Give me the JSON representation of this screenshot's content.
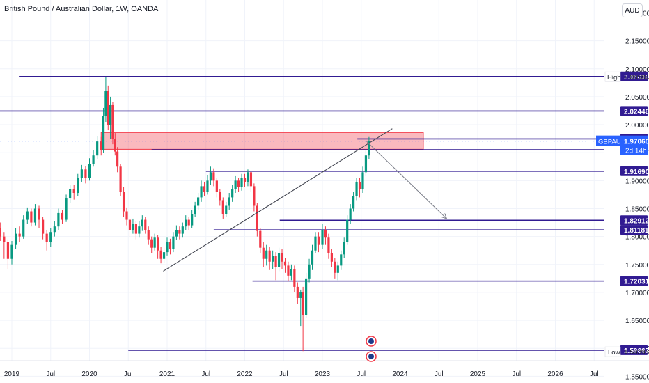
{
  "header": {
    "title": "British Pound / Australian Dollar, 1W, OANDA",
    "currency": "AUD"
  },
  "chart_data": {
    "type": "candlestick",
    "symbol": "GBPAUD",
    "ylim": [
      1.538,
      2.223
    ],
    "y_ticks": [
      "2.20000",
      "2.15000",
      "2.10000",
      "2.05000",
      "2.00000",
      "1.95000",
      "1.90000",
      "1.85000",
      "1.80000",
      "1.75000",
      "1.70000",
      "1.65000",
      "1.60000",
      "1.55000"
    ],
    "x_ticks": [
      {
        "label": "2019",
        "t": 2019.0
      },
      {
        "label": "Jul",
        "t": 2019.5
      },
      {
        "label": "2020",
        "t": 2020.0
      },
      {
        "label": "Jul",
        "t": 2020.5
      },
      {
        "label": "2021",
        "t": 2021.0
      },
      {
        "label": "Jul",
        "t": 2021.5
      },
      {
        "label": "2022",
        "t": 2022.0
      },
      {
        "label": "Jul",
        "t": 2022.5
      },
      {
        "label": "2023",
        "t": 2023.0
      },
      {
        "label": "Jul",
        "t": 2023.5
      },
      {
        "label": "2024",
        "t": 2024.0
      },
      {
        "label": "Jul",
        "t": 2024.5
      },
      {
        "label": "2025",
        "t": 2025.0
      },
      {
        "label": "Jul",
        "t": 2025.5
      },
      {
        "label": "2026",
        "t": 2026.0
      },
      {
        "label": "Jul",
        "t": 2026.5
      }
    ],
    "levels": [
      {
        "price": 2.0863,
        "label": "2.08630",
        "t_start": 2019.1
      },
      {
        "price": 2.02446,
        "label": "2.02446",
        "t_start": 2018.8
      },
      {
        "price": 1.97459,
        "label": "1.97459",
        "t_start": 2023.45
      },
      {
        "price": 1.95523,
        "label": "1.95523",
        "t_start": 2020.8
      },
      {
        "price": 1.9169,
        "label": "1.91690",
        "t_start": 2021.5
      },
      {
        "price": 1.82912,
        "label": "1.82912",
        "t_start": 2022.45
      },
      {
        "price": 1.81181,
        "label": "1.81181",
        "t_start": 2021.6
      },
      {
        "price": 1.72031,
        "label": "1.72031",
        "t_start": 2022.1
      },
      {
        "price": 1.59667,
        "label": "1.59667",
        "t_start": 2020.5
      }
    ],
    "current": {
      "label": "GBPAUD",
      "price": 1.9706,
      "price_label": "1.97060",
      "countdown": "2d 14h"
    },
    "high": {
      "label": "High",
      "price": 2.08584,
      "price_label": "2.08584"
    },
    "low": {
      "label": "Low",
      "price": 1.59396,
      "price_label": "1.59396"
    },
    "zone": {
      "t_start": 2020.15,
      "t_end": 2024.3,
      "top": 1.986,
      "bottom": 1.956
    },
    "trendline": {
      "t1": 2020.95,
      "p1": 1.738,
      "t2": 2023.9,
      "p2": 1.993
    },
    "projection": {
      "t1": 2023.57,
      "p1": 1.97,
      "t2": 2024.6,
      "p2": 1.832
    },
    "candles": [
      [
        2018.8,
        1.785,
        1.815,
        1.78,
        1.82
      ],
      [
        2018.85,
        1.815,
        1.8,
        1.792,
        1.825
      ],
      [
        2018.9,
        1.8,
        1.79,
        1.76,
        1.808
      ],
      [
        2018.95,
        1.79,
        1.76,
        1.742,
        1.795
      ],
      [
        2019.0,
        1.76,
        1.785,
        1.75,
        1.792
      ],
      [
        2019.05,
        1.785,
        1.805,
        1.778,
        1.815
      ],
      [
        2019.1,
        1.805,
        1.8,
        1.79,
        1.818
      ],
      [
        2019.15,
        1.8,
        1.83,
        1.796,
        1.838
      ],
      [
        2019.2,
        1.83,
        1.845,
        1.822,
        1.852
      ],
      [
        2019.25,
        1.845,
        1.825,
        1.818,
        1.85
      ],
      [
        2019.3,
        1.825,
        1.85,
        1.82,
        1.858
      ],
      [
        2019.35,
        1.85,
        1.83,
        1.815,
        1.855
      ],
      [
        2019.4,
        1.83,
        1.805,
        1.795,
        1.835
      ],
      [
        2019.45,
        1.805,
        1.79,
        1.775,
        1.812
      ],
      [
        2019.5,
        1.79,
        1.808,
        1.782,
        1.815
      ],
      [
        2019.55,
        1.808,
        1.818,
        1.8,
        1.828
      ],
      [
        2019.6,
        1.818,
        1.842,
        1.812,
        1.85
      ],
      [
        2019.65,
        1.842,
        1.83,
        1.822,
        1.848
      ],
      [
        2019.7,
        1.83,
        1.868,
        1.826,
        1.875
      ],
      [
        2019.75,
        1.868,
        1.885,
        1.86,
        1.893
      ],
      [
        2019.8,
        1.885,
        1.878,
        1.866,
        1.892
      ],
      [
        2019.85,
        1.878,
        1.905,
        1.872,
        1.912
      ],
      [
        2019.9,
        1.905,
        1.92,
        1.898,
        1.928
      ],
      [
        2019.95,
        1.92,
        1.905,
        1.895,
        1.926
      ],
      [
        2020.0,
        1.905,
        1.93,
        1.9,
        1.94
      ],
      [
        2020.05,
        1.93,
        1.945,
        1.925,
        1.955
      ],
      [
        2020.1,
        1.945,
        1.97,
        1.938,
        1.98
      ],
      [
        2020.15,
        1.97,
        1.955,
        1.945,
        1.978
      ],
      [
        2020.18,
        1.955,
        2.015,
        1.95,
        2.03
      ],
      [
        2020.21,
        2.015,
        2.06,
        2.005,
        2.0858
      ],
      [
        2020.24,
        2.06,
        2.0,
        1.99,
        2.07
      ],
      [
        2020.27,
        2.0,
        2.035,
        1.975,
        2.05
      ],
      [
        2020.3,
        2.035,
        1.975,
        1.965,
        2.04
      ],
      [
        2020.33,
        1.975,
        1.952,
        1.945,
        1.985
      ],
      [
        2020.36,
        1.952,
        1.925,
        1.915,
        1.96
      ],
      [
        2020.4,
        1.925,
        1.88,
        1.872,
        1.93
      ],
      [
        2020.44,
        1.88,
        1.845,
        1.835,
        1.888
      ],
      [
        2020.48,
        1.845,
        1.83,
        1.82,
        1.852
      ],
      [
        2020.52,
        1.83,
        1.812,
        1.8,
        1.838
      ],
      [
        2020.56,
        1.812,
        1.822,
        1.805,
        1.832
      ],
      [
        2020.6,
        1.822,
        1.805,
        1.795,
        1.828
      ],
      [
        2020.64,
        1.805,
        1.818,
        1.798,
        1.828
      ],
      [
        2020.68,
        1.818,
        1.83,
        1.81,
        1.838
      ],
      [
        2020.72,
        1.83,
        1.812,
        1.805,
        1.835
      ],
      [
        2020.76,
        1.812,
        1.795,
        1.785,
        1.818
      ],
      [
        2020.8,
        1.795,
        1.78,
        1.77,
        1.8
      ],
      [
        2020.84,
        1.78,
        1.798,
        1.775,
        1.805
      ],
      [
        2020.88,
        1.798,
        1.775,
        1.76,
        1.802
      ],
      [
        2020.92,
        1.775,
        1.76,
        1.752,
        1.782
      ],
      [
        2020.96,
        1.76,
        1.772,
        1.752,
        1.78
      ],
      [
        2021.0,
        1.772,
        1.79,
        1.766,
        1.798
      ],
      [
        2021.04,
        1.79,
        1.778,
        1.768,
        1.796
      ],
      [
        2021.08,
        1.778,
        1.8,
        1.772,
        1.808
      ],
      [
        2021.12,
        1.8,
        1.812,
        1.794,
        1.82
      ],
      [
        2021.16,
        1.812,
        1.805,
        1.795,
        1.818
      ],
      [
        2021.2,
        1.805,
        1.818,
        1.798,
        1.825
      ],
      [
        2021.24,
        1.818,
        1.83,
        1.812,
        1.838
      ],
      [
        2021.28,
        1.83,
        1.82,
        1.812,
        1.835
      ],
      [
        2021.32,
        1.82,
        1.84,
        1.815,
        1.848
      ],
      [
        2021.36,
        1.84,
        1.855,
        1.835,
        1.862
      ],
      [
        2021.4,
        1.855,
        1.87,
        1.848,
        1.878
      ],
      [
        2021.44,
        1.87,
        1.89,
        1.862,
        1.9
      ],
      [
        2021.48,
        1.89,
        1.88,
        1.872,
        1.898
      ],
      [
        2021.52,
        1.88,
        1.9,
        1.875,
        1.91
      ],
      [
        2021.56,
        1.9,
        1.915,
        1.892,
        1.925
      ],
      [
        2021.6,
        1.915,
        1.9,
        1.89,
        1.922
      ],
      [
        2021.64,
        1.9,
        1.88,
        1.87,
        1.905
      ],
      [
        2021.68,
        1.88,
        1.865,
        1.855,
        1.885
      ],
      [
        2021.72,
        1.865,
        1.84,
        1.832,
        1.87
      ],
      [
        2021.76,
        1.84,
        1.855,
        1.835,
        1.862
      ],
      [
        2021.8,
        1.855,
        1.87,
        1.848,
        1.878
      ],
      [
        2021.84,
        1.87,
        1.885,
        1.862,
        1.892
      ],
      [
        2021.88,
        1.885,
        1.9,
        1.878,
        1.908
      ],
      [
        2021.92,
        1.9,
        1.888,
        1.88,
        1.905
      ],
      [
        2021.96,
        1.888,
        1.905,
        1.882,
        1.912
      ],
      [
        2022.0,
        1.905,
        1.898,
        1.888,
        1.912
      ],
      [
        2022.04,
        1.898,
        1.915,
        1.89,
        1.92
      ],
      [
        2022.08,
        1.915,
        1.89,
        1.88,
        1.918
      ],
      [
        2022.12,
        1.89,
        1.855,
        1.845,
        1.895
      ],
      [
        2022.16,
        1.855,
        1.81,
        1.8,
        1.86
      ],
      [
        2022.2,
        1.81,
        1.78,
        1.77,
        1.815
      ],
      [
        2022.24,
        1.78,
        1.76,
        1.745,
        1.79
      ],
      [
        2022.28,
        1.76,
        1.775,
        1.748,
        1.785
      ],
      [
        2022.32,
        1.775,
        1.755,
        1.74,
        1.782
      ],
      [
        2022.36,
        1.755,
        1.765,
        1.742,
        1.775
      ],
      [
        2022.4,
        1.765,
        1.745,
        1.722,
        1.772
      ],
      [
        2022.44,
        1.745,
        1.77,
        1.738,
        1.78
      ],
      [
        2022.48,
        1.77,
        1.755,
        1.742,
        1.778
      ],
      [
        2022.52,
        1.755,
        1.748,
        1.735,
        1.762
      ],
      [
        2022.56,
        1.748,
        1.73,
        1.72,
        1.755
      ],
      [
        2022.6,
        1.73,
        1.742,
        1.722,
        1.75
      ],
      [
        2022.64,
        1.742,
        1.71,
        1.7,
        1.748
      ],
      [
        2022.68,
        1.71,
        1.69,
        1.68,
        1.718
      ],
      [
        2022.72,
        1.69,
        1.7,
        1.64,
        1.705
      ],
      [
        2022.75,
        1.7,
        1.66,
        1.595,
        1.71
      ],
      [
        2022.79,
        1.66,
        1.725,
        1.655,
        1.735
      ],
      [
        2022.83,
        1.725,
        1.75,
        1.718,
        1.76
      ],
      [
        2022.87,
        1.75,
        1.775,
        1.74,
        1.785
      ],
      [
        2022.91,
        1.775,
        1.8,
        1.77,
        1.808
      ],
      [
        2022.95,
        1.8,
        1.785,
        1.772,
        1.808
      ],
      [
        2023.0,
        1.785,
        1.812,
        1.778,
        1.822
      ],
      [
        2023.04,
        1.812,
        1.798,
        1.785,
        1.818
      ],
      [
        2023.08,
        1.798,
        1.77,
        1.76,
        1.805
      ],
      [
        2023.12,
        1.77,
        1.755,
        1.745,
        1.778
      ],
      [
        2023.16,
        1.755,
        1.735,
        1.725,
        1.762
      ],
      [
        2023.2,
        1.735,
        1.748,
        1.722,
        1.755
      ],
      [
        2023.24,
        1.748,
        1.768,
        1.74,
        1.775
      ],
      [
        2023.28,
        1.768,
        1.79,
        1.762,
        1.798
      ],
      [
        2023.32,
        1.79,
        1.83,
        1.785,
        1.838
      ],
      [
        2023.36,
        1.83,
        1.85,
        1.822,
        1.858
      ],
      [
        2023.4,
        1.85,
        1.872,
        1.845,
        1.88
      ],
      [
        2023.44,
        1.872,
        1.898,
        1.865,
        1.905
      ],
      [
        2023.48,
        1.898,
        1.885,
        1.87,
        1.905
      ],
      [
        2023.52,
        1.885,
        1.915,
        1.878,
        1.925
      ],
      [
        2023.56,
        1.915,
        1.945,
        1.908,
        1.955
      ],
      [
        2023.6,
        1.945,
        1.9706,
        1.938,
        1.978
      ]
    ]
  }
}
